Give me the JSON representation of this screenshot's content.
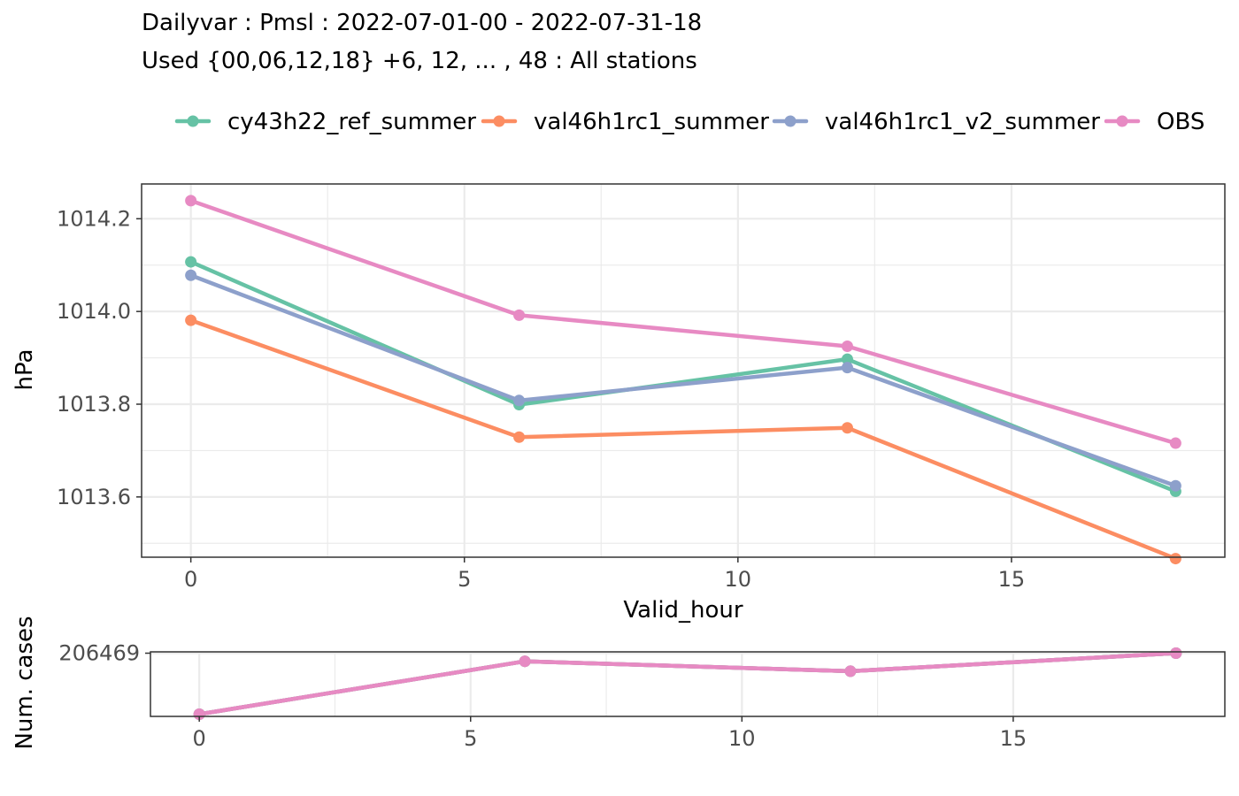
{
  "title": "Dailyvar : Pmsl : 2022-07-01-00 - 2022-07-31-18",
  "subtitle": "Used {00,06,12,18} +6, 12, ... , 48 : All stations",
  "colors": {
    "cy43h22_ref_summer": "#66c2a5",
    "val46h1rc1_summer": "#fc8d62",
    "val46h1rc1_v2_summer": "#8da0cb",
    "OBS": "#e78ac3"
  },
  "chart_data": [
    {
      "type": "line",
      "xlabel": "Valid_hour",
      "ylabel": "hPa",
      "xlim": [
        -0.9,
        18.9
      ],
      "ylim": [
        1013.47,
        1014.275
      ],
      "x_ticks": [
        0,
        5,
        10,
        15
      ],
      "y_ticks": [
        1013.6,
        1013.8,
        1014.0,
        1014.2
      ],
      "grid": true,
      "legend_position": "top",
      "x": [
        0,
        6,
        12,
        18
      ],
      "series": [
        {
          "name": "cy43h22_ref_summer",
          "values": [
            1014.107,
            1013.799,
            1013.897,
            1013.612
          ]
        },
        {
          "name": "val46h1rc1_summer",
          "values": [
            1013.981,
            1013.729,
            1013.749,
            1013.467
          ]
        },
        {
          "name": "val46h1rc1_v2_summer",
          "values": [
            1014.078,
            1013.808,
            1013.879,
            1013.624
          ]
        },
        {
          "name": "OBS",
          "values": [
            1014.239,
            1013.992,
            1013.925,
            1013.716
          ]
        }
      ]
    },
    {
      "type": "line",
      "xlabel": "",
      "ylabel": "Num. cases",
      "xlim": [
        -0.9,
        18.9
      ],
      "ylim": [
        203600,
        206530
      ],
      "x_ticks": [
        0,
        5,
        10,
        15
      ],
      "y_ticks": [
        206469
      ],
      "y_tick_labels": [
        "206469"
      ],
      "grid": true,
      "x": [
        0,
        6,
        12,
        18
      ],
      "series": [
        {
          "name": "cy43h22_ref_summer",
          "values": [
            203700,
            206100,
            205650,
            206469
          ]
        },
        {
          "name": "val46h1rc1_summer",
          "values": [
            203700,
            206100,
            205650,
            206469
          ]
        },
        {
          "name": "val46h1rc1_v2_summer",
          "values": [
            203700,
            206100,
            205650,
            206469
          ]
        },
        {
          "name": "OBS",
          "values": [
            203700,
            206100,
            205650,
            206469
          ]
        }
      ]
    }
  ]
}
